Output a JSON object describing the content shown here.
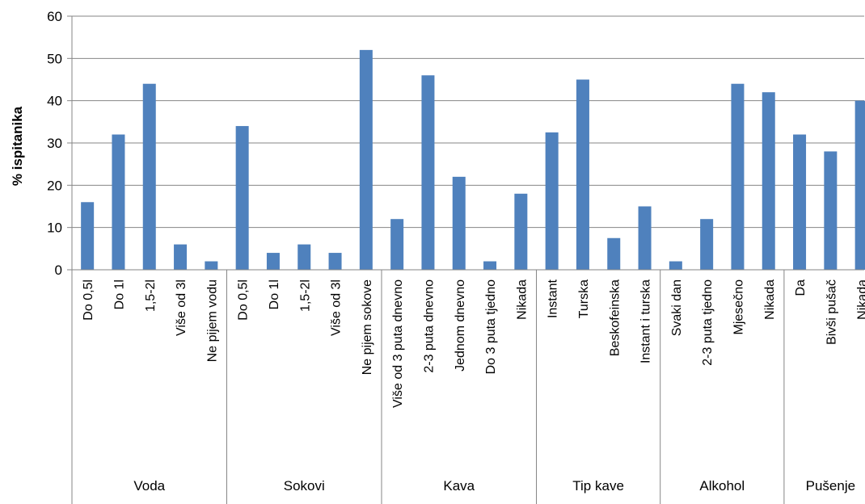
{
  "chart_data": {
    "type": "bar",
    "ylabel": "% ispitanika",
    "xlabel": "",
    "ylim": [
      0,
      60
    ],
    "yticks": [
      "0",
      "10",
      "20",
      "30",
      "40",
      "50",
      "60"
    ],
    "grid": true,
    "colors": {
      "bar": "#4f81bd",
      "grid": "#868686"
    },
    "groups": [
      {
        "name": "Voda",
        "categories": [
          "Do 0,5l",
          "Do 1l",
          "1,5-2l",
          "Više od 3l",
          "Ne pijem vodu"
        ],
        "values": [
          16,
          32,
          44,
          6,
          2
        ]
      },
      {
        "name": "Sokovi",
        "categories": [
          "Do 0,5l",
          "Do 1l",
          "1,5-2l",
          "Više od 3l",
          "Ne pijem sokove"
        ],
        "values": [
          34,
          4,
          6,
          4,
          52
        ]
      },
      {
        "name": "Kava",
        "categories": [
          "Više od 3 puta dnevno",
          "2-3 puta dnevno",
          "Jednom dnevno",
          "Do 3 puta tjedno",
          "Nikada"
        ],
        "values": [
          12,
          46,
          22,
          2,
          18
        ]
      },
      {
        "name": "Tip kave",
        "categories": [
          "Instant",
          "Turska",
          "Beskofeinska",
          "Instant i turska"
        ],
        "values": [
          32.5,
          45,
          7.5,
          15
        ]
      },
      {
        "name": "Alkohol",
        "categories": [
          "Svaki dan",
          "2-3 puta tjedno",
          "Mjesečno",
          "Nikada"
        ],
        "values": [
          2,
          12,
          44,
          42
        ]
      },
      {
        "name": "Pušenje",
        "categories": [
          "Da",
          "Bivši pušač",
          "Nikada"
        ],
        "values": [
          32,
          28,
          40
        ]
      }
    ]
  }
}
